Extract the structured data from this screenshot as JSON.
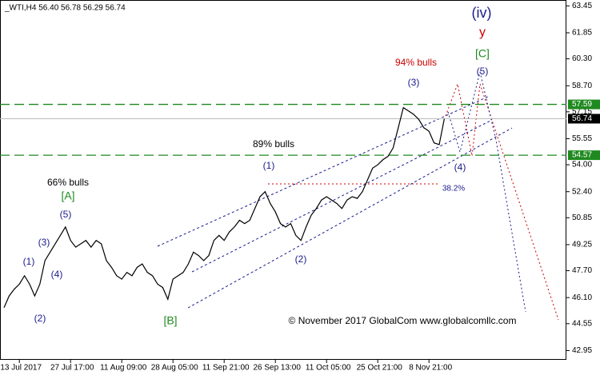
{
  "chart_data": {
    "type": "line",
    "title": "_WTI,H4  56.40 56.78 56.29 56.74",
    "categories": [
      null,
      null,
      null,
      "13 Jul 2017",
      null,
      null,
      null,
      null,
      null,
      null,
      null,
      null,
      null,
      "27 Jul 17:00",
      null,
      null,
      null,
      null,
      null,
      null,
      null,
      null,
      null,
      "11 Aug 09:00",
      null,
      null,
      null,
      null,
      null,
      null,
      null,
      null,
      null,
      "28 Aug 05:00",
      null,
      null,
      null,
      null,
      null,
      null,
      null,
      null,
      null,
      "11 Sep 21:00",
      null,
      null,
      null,
      null,
      null,
      null,
      null,
      null,
      null,
      "26 Sep 13:00",
      null,
      null,
      null,
      null,
      null,
      null,
      null,
      null,
      null,
      "11 Oct 05:00",
      null,
      null,
      null,
      null,
      null,
      null,
      null,
      null,
      null,
      "25 Oct 21:00",
      null,
      null,
      null,
      null,
      null,
      null,
      null,
      null,
      null,
      "8 Nov 21:00",
      null,
      null,
      null
    ],
    "values": [
      45.5,
      46.2,
      46.6,
      46.9,
      47.4,
      46.9,
      46.2,
      46.9,
      48.3,
      48.8,
      49.3,
      49.8,
      50.3,
      49.5,
      49.1,
      49.3,
      49.5,
      49.1,
      49.5,
      49.3,
      48.3,
      47.9,
      47.4,
      47.2,
      47.6,
      47.4,
      47.9,
      48.1,
      47.6,
      47.4,
      46.9,
      46.7,
      46.0,
      47.2,
      47.4,
      47.6,
      48.1,
      48.8,
      48.6,
      48.3,
      48.6,
      49.5,
      49.8,
      49.5,
      50.0,
      50.3,
      50.7,
      50.5,
      50.7,
      51.4,
      52.1,
      52.4,
      51.7,
      51.2,
      50.5,
      50.3,
      50.5,
      49.8,
      49.5,
      50.3,
      51.0,
      51.4,
      51.9,
      52.1,
      51.9,
      51.7,
      51.4,
      51.9,
      52.1,
      52.0,
      52.4,
      53.1,
      53.8,
      54.0,
      54.3,
      54.5,
      55.0,
      56.2,
      57.4,
      57.2,
      57.0,
      56.7,
      56.2,
      56.0,
      55.3,
      55.2,
      56.74
    ],
    "color": "#000000",
    "ylim": [
      42.4,
      63.8
    ],
    "yticks": [
      42.95,
      44.55,
      {
        "value": 46.1,
        "label": "46.10"
      },
      {
        "value": 47.7,
        "label": "47.70"
      },
      49.25,
      50.85,
      {
        "value": 52.4,
        "label": "52.40"
      },
      {
        "value": 54,
        "label": "54.00"
      },
      55.55,
      57.15,
      {
        "value": 58.7,
        "label": "58.70"
      },
      {
        "value": 60.3,
        "label": "60.30"
      },
      61.85,
      63.45
    ],
    "levels": [
      {
        "value": 57.59,
        "color": "#1f8a1f"
      },
      {
        "value": 54.57,
        "color": "#1f8a1f"
      },
      {
        "value": 56.74,
        "color": "#000000"
      }
    ],
    "annotations": [
      {
        "text": "(iv)",
        "color": "#1a1a8c"
      },
      {
        "text": "y",
        "color": "#cc0000"
      },
      {
        "text": "[C]",
        "color": "#1f8a1f"
      },
      {
        "text": "94% bulls",
        "color": "#cc0000"
      },
      {
        "text": "(5)",
        "color": "#1a1a8c"
      },
      {
        "text": "(3)",
        "color": "#1a1a8c"
      },
      {
        "text": "89% bulls",
        "color": "#000000"
      },
      {
        "text": "(1)",
        "color": "#1a1a8c"
      },
      {
        "text": "(4)",
        "color": "#1a1a8c"
      },
      {
        "text": "66% bulls",
        "color": "#000000"
      },
      {
        "text": "[A]",
        "color": "#1f8a1f"
      },
      {
        "text": "38.2%",
        "color": "#1a1a8c"
      },
      {
        "text": "(5)",
        "color": "#1a1a8c"
      },
      {
        "text": "(3)",
        "color": "#1a1a8c"
      },
      {
        "text": "(1)",
        "color": "#1a1a8c"
      },
      {
        "text": "(4)",
        "color": "#1a1a8c"
      },
      {
        "text": "(2)",
        "color": "#1a1a8c"
      },
      {
        "text": "(2)",
        "color": "#1a1a8c"
      },
      {
        "text": "[B]",
        "color": "#1f8a1f"
      },
      {
        "text": "© November 2017 GlobalCom www.globalcomllc.com",
        "color": "#000000"
      }
    ]
  }
}
